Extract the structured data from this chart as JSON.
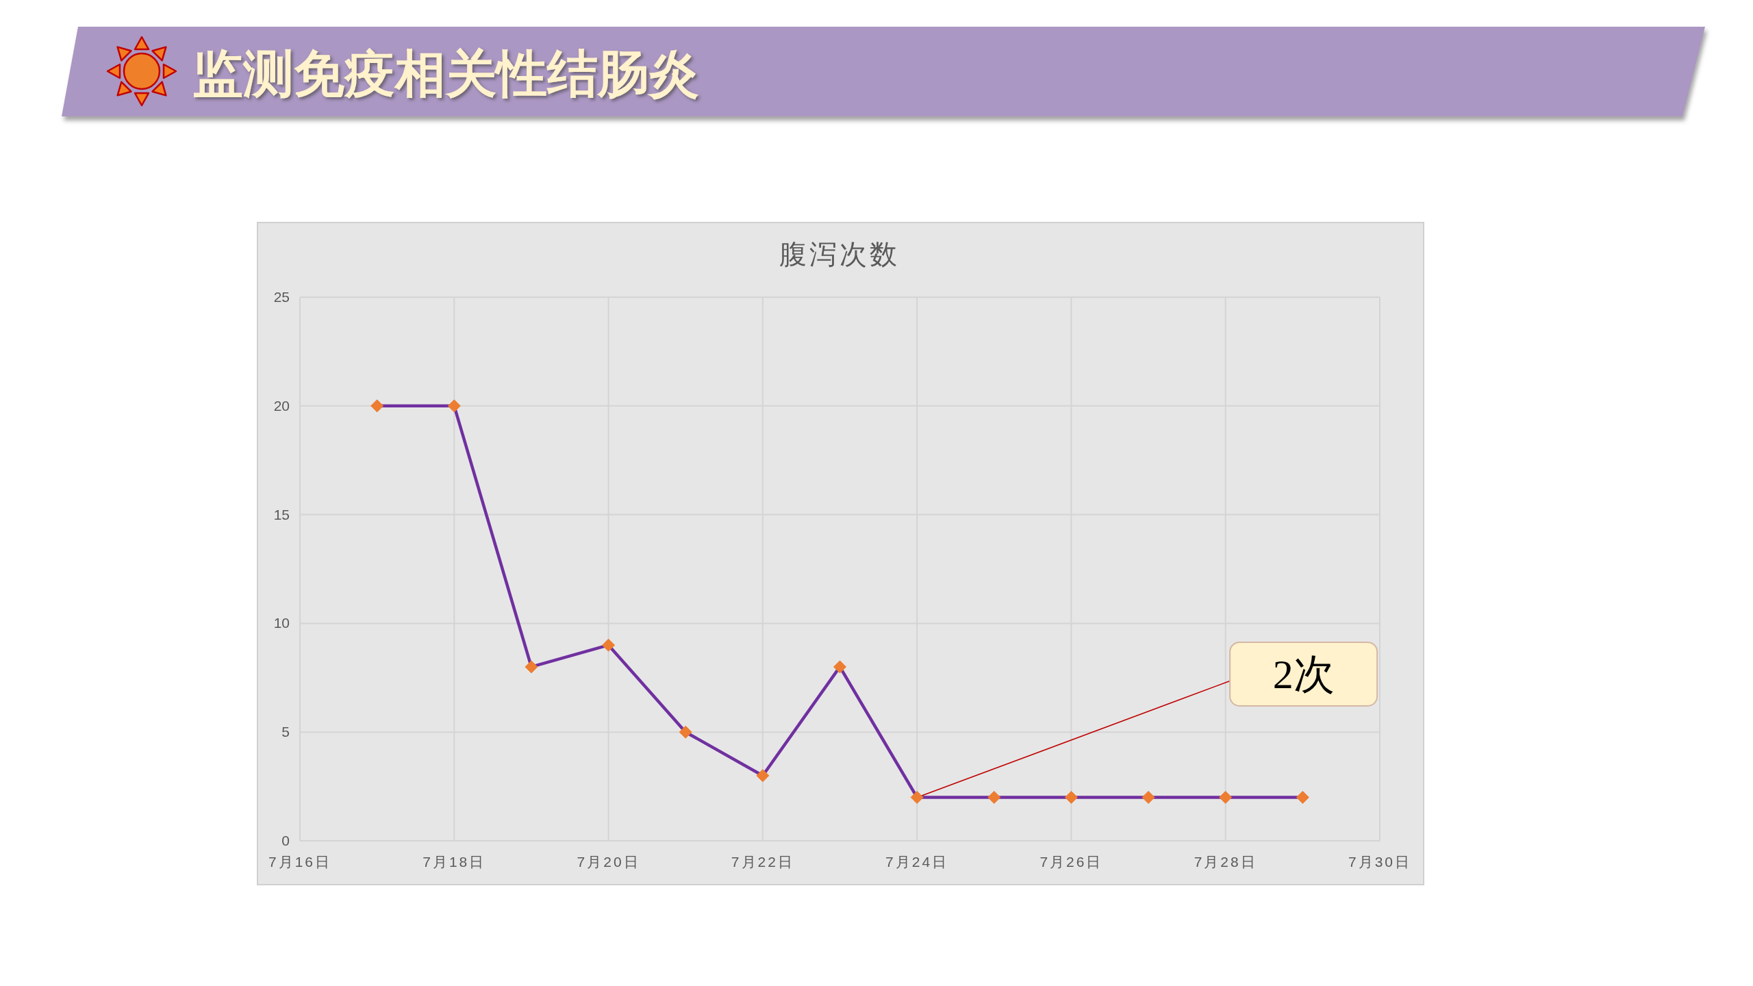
{
  "chart_data": {
    "type": "line",
    "title": "监测免疫相关性结肠炎",
    "subtitle": "腹泻次数",
    "x": [
      "--07-17",
      "--07-18",
      "--07-19",
      "--07-20",
      "--07-21",
      "--07-22",
      "--07-23",
      "--07-24",
      "--07-25",
      "--07-26",
      "--07-27",
      "--07-28",
      "--07-29"
    ],
    "series": [
      {
        "color": "#7030a0",
        "colors": [
          "#ed7d31",
          "#ed7d31",
          "#ed7d31",
          "#ed7d31",
          "#ed7d31",
          "#ed7d31",
          "#ed7d31",
          "#ed7d31",
          "#ed7d31",
          "#ed7d31",
          "#ed7d31",
          "#ed7d31",
          "#ed7d31"
        ],
        "values": [
          20,
          20,
          8,
          9,
          5,
          3,
          8,
          2,
          2,
          2,
          2,
          2,
          2
        ]
      }
    ],
    "xlim": [
      "--07-16",
      "--07-30"
    ],
    "xticks": [
      {
        "value": "--07-16",
        "label": "7月16日"
      },
      {
        "value": "--07-18",
        "label": "7月18日"
      },
      {
        "value": "--07-20",
        "label": "7月20日"
      },
      {
        "value": "--07-22",
        "label": "7月22日"
      },
      {
        "value": "--07-24",
        "label": "7月24日"
      },
      {
        "value": "--07-26",
        "label": "7月26日"
      },
      {
        "value": "--07-28",
        "label": "7月28日"
      },
      {
        "value": "--07-30",
        "label": "7月30日"
      }
    ],
    "ylim": [
      0,
      25
    ],
    "yticks": [
      0,
      5,
      10,
      15,
      20,
      25
    ],
    "grid": true,
    "marker": "diamond",
    "line_style": "solid",
    "annotations": [
      {
        "text": "2次",
        "x": "--07-24",
        "y": 2
      }
    ]
  }
}
